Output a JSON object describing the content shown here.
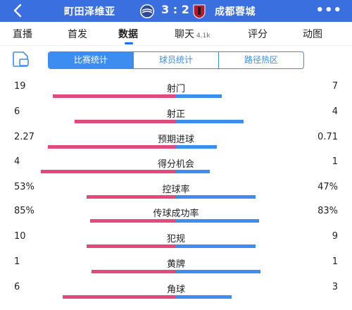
{
  "header": {
    "home_team": "町田泽维亚",
    "away_team": "成都蓉城",
    "score": "3 : 2",
    "more_label": "•••"
  },
  "tabs": [
    {
      "label": "直播",
      "badge": ""
    },
    {
      "label": "首发",
      "badge": ""
    },
    {
      "label": "数据",
      "badge": "",
      "active": true
    },
    {
      "label": "聊天",
      "badge": "4.1k"
    },
    {
      "label": "评分",
      "badge": ""
    },
    {
      "label": "动图",
      "badge": ""
    }
  ],
  "segmented": [
    "比赛统计",
    "球员统计",
    "路径热区"
  ],
  "colors": {
    "home": "#e24a7c",
    "away": "#3d8cf0",
    "header": "#3a6fe0"
  },
  "stats": [
    {
      "label": "射门",
      "home": "19",
      "away": "7",
      "home_share": 0.73,
      "away_share": 0.27
    },
    {
      "label": "射正",
      "home": "6",
      "away": "4",
      "home_share": 0.6,
      "away_share": 0.4
    },
    {
      "label": "预期进球",
      "home": "2.27",
      "away": "0.71",
      "home_share": 0.76,
      "away_share": 0.24
    },
    {
      "label": "得分机会",
      "home": "4",
      "away": "1",
      "home_share": 0.8,
      "away_share": 0.2
    },
    {
      "label": "控球率",
      "home": "53%",
      "away": "47%",
      "home_share": 0.53,
      "away_share": 0.47
    },
    {
      "label": "传球成功率",
      "home": "85%",
      "away": "83%",
      "home_share": 0.51,
      "away_share": 0.49
    },
    {
      "label": "犯规",
      "home": "10",
      "away": "9",
      "home_share": 0.53,
      "away_share": 0.47
    },
    {
      "label": "黄牌",
      "home": "1",
      "away": "1",
      "home_share": 0.5,
      "away_share": 0.5
    },
    {
      "label": "角球",
      "home": "6",
      "away": "3",
      "home_share": 0.67,
      "away_share": 0.33
    }
  ]
}
